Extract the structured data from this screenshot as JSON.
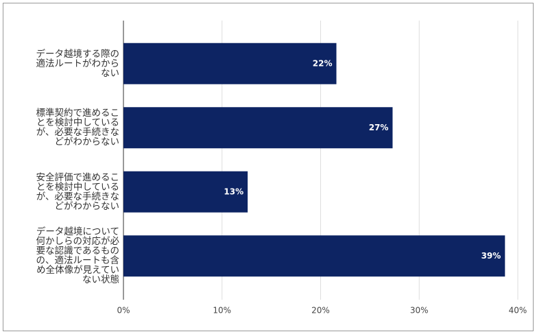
{
  "chart_data": {
    "type": "bar",
    "orientation": "horizontal",
    "categories": [
      "データ越境する際の適法ルートがわからない",
      "標準契約で進めることを検討中しているが、必要な手続きなどがわからない",
      "安全評価で進めることを検討中しているが、必要な手続きなどがわからない",
      "データ越境について何かしらの対応が必要な認識であるものの、適法ルートも含め全体像が見えていない状態"
    ],
    "values": [
      21.6,
      27.3,
      12.6,
      38.7
    ],
    "value_labels": [
      "22%",
      "27%",
      "13%",
      "39%"
    ],
    "color": "#0d2463",
    "xlim": [
      0,
      40
    ],
    "xticks": [
      {
        "value": 0,
        "label": "0%"
      },
      {
        "value": 10,
        "label": "10%"
      },
      {
        "value": 20,
        "label": "20%"
      },
      {
        "value": 30,
        "label": "30%"
      },
      {
        "value": 40,
        "label": "40%"
      }
    ],
    "grid": true
  }
}
